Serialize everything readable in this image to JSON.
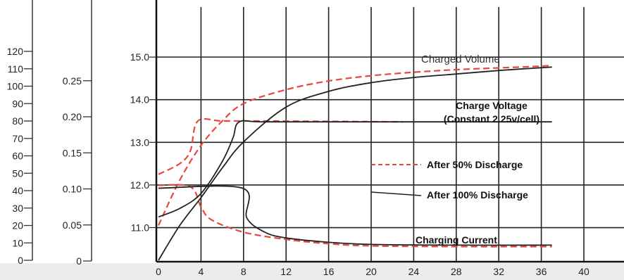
{
  "chart_data": {
    "type": "line",
    "title": "",
    "xlabel": "",
    "ylabel": "",
    "x_ticks": [
      "0",
      "4",
      "8",
      "12",
      "16",
      "20",
      "24",
      "28",
      "32",
      "36",
      "40"
    ],
    "xlim": [
      0,
      40
    ],
    "grid": true,
    "axes": {
      "charged_volume": {
        "ticks": [
          "0",
          "10",
          "20",
          "30",
          "40",
          "50",
          "60",
          "70",
          "80",
          "90",
          "100",
          "110",
          "120"
        ],
        "range": [
          0,
          120
        ]
      },
      "charging_current": {
        "ticks": [
          "0",
          "0.05",
          "0.10",
          "0.15",
          "0.20",
          "0.25"
        ],
        "range": [
          0,
          0.25
        ]
      },
      "charge_voltage": {
        "ticks": [
          "11.0",
          "12.0",
          "13.0",
          "14.0",
          "15.0"
        ],
        "range": [
          10.2,
          15.6
        ]
      }
    },
    "annotations": {
      "charged_volume": "Charged Volume",
      "charge_voltage_line1": "Charge Voltage",
      "charge_voltage_line2": "(Constant 2.25v/cell)",
      "charging_current": "Charging Current"
    },
    "legend": {
      "placement": "right",
      "entries": [
        {
          "label": "After 50% Discharge",
          "style": "dashed",
          "color": "#e8473f"
        },
        {
          "label": "After 100% Discharge",
          "style": "solid",
          "color": "#222222"
        }
      ]
    },
    "series": [
      {
        "group": "After 50% Discharge",
        "quantity": "Charged Volume",
        "style": "dashed",
        "color": "#e8473f",
        "points": [
          [
            0,
            20
          ],
          [
            2,
            46
          ],
          [
            4,
            66
          ],
          [
            6,
            80
          ],
          [
            8,
            90
          ],
          [
            12,
            98
          ],
          [
            16,
            103
          ],
          [
            20,
            106
          ],
          [
            24,
            108
          ],
          [
            28,
            109.5
          ],
          [
            32,
            110.5
          ],
          [
            36,
            111.5
          ],
          [
            37,
            112
          ]
        ]
      },
      {
        "group": "After 50% Discharge",
        "quantity": "Charge Voltage",
        "style": "dashed",
        "color": "#e8473f",
        "points": [
          [
            0,
            12.25
          ],
          [
            2,
            12.5
          ],
          [
            3,
            12.8
          ],
          [
            3.7,
            13.5
          ],
          [
            6,
            13.5
          ],
          [
            10,
            13.5
          ],
          [
            23,
            13.48
          ]
        ]
      },
      {
        "group": "After 50% Discharge",
        "quantity": "Charging Current",
        "style": "dashed",
        "color": "#e8473f",
        "points": [
          [
            0,
            0.105
          ],
          [
            3,
            0.103
          ],
          [
            4,
            0.075
          ],
          [
            5,
            0.057
          ],
          [
            8,
            0.04
          ],
          [
            12,
            0.03
          ],
          [
            16,
            0.024
          ],
          [
            20,
            0.021
          ],
          [
            28,
            0.02
          ],
          [
            37,
            0.02
          ]
        ]
      },
      {
        "group": "After 100% Discharge",
        "quantity": "Charged Volume",
        "style": "solid",
        "color": "#222222",
        "points": [
          [
            0,
            0
          ],
          [
            2,
            20
          ],
          [
            4,
            36
          ],
          [
            6,
            53
          ],
          [
            8,
            68
          ],
          [
            12,
            88
          ],
          [
            16,
            97
          ],
          [
            20,
            102
          ],
          [
            24,
            105
          ],
          [
            28,
            107
          ],
          [
            32,
            109
          ],
          [
            37,
            111
          ]
        ]
      },
      {
        "group": "After 100% Discharge",
        "quantity": "Charge Voltage",
        "style": "solid",
        "color": "#222222",
        "points": [
          [
            0,
            11.25
          ],
          [
            2,
            11.45
          ],
          [
            4,
            11.8
          ],
          [
            6,
            12.55
          ],
          [
            7,
            13.1
          ],
          [
            7.6,
            13.48
          ],
          [
            10,
            13.48
          ],
          [
            20,
            13.48
          ],
          [
            37,
            13.48
          ]
        ]
      },
      {
        "group": "After 100% Discharge",
        "quantity": "Charging Current",
        "style": "solid",
        "color": "#222222",
        "points": [
          [
            0,
            0.101
          ],
          [
            7.9,
            0.101
          ],
          [
            8.3,
            0.06
          ],
          [
            10,
            0.04
          ],
          [
            12,
            0.032
          ],
          [
            16,
            0.026
          ],
          [
            20,
            0.023
          ],
          [
            28,
            0.022
          ],
          [
            37,
            0.022
          ]
        ]
      }
    ]
  }
}
